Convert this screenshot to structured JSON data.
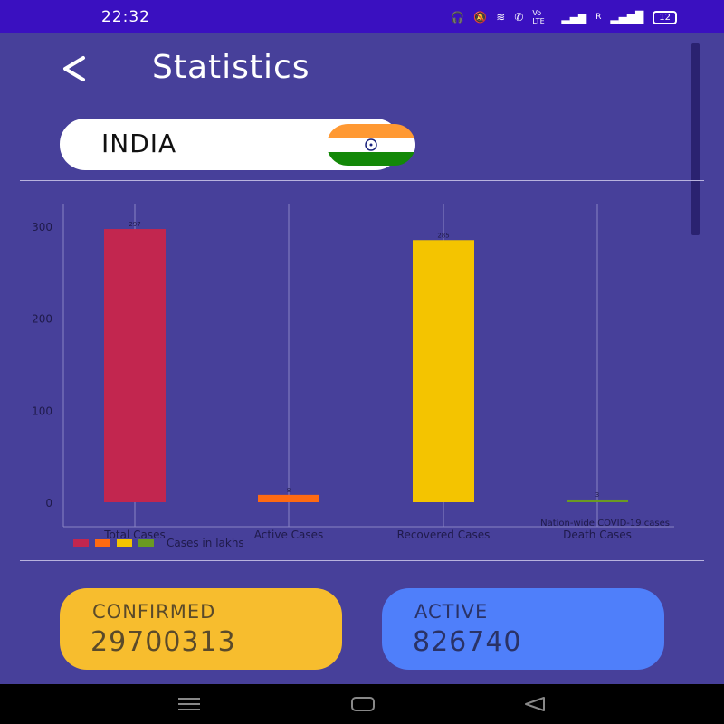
{
  "status_bar": {
    "time": "22:32",
    "network_label": "Vo LTE",
    "signal_label": "R",
    "battery": "12"
  },
  "header": {
    "title": "Statistics"
  },
  "country": {
    "name": "INDIA"
  },
  "chart_data": {
    "type": "bar",
    "categories": [
      "Total Cases",
      "Active Cases",
      "Recovered  Cases",
      "Death  Cases"
    ],
    "values": [
      297,
      8,
      285,
      3
    ],
    "data_labels": [
      "297",
      "8",
      "285",
      "3"
    ],
    "colors": [
      "#c2264f",
      "#ff6a12",
      "#f4c400",
      "#6a9a22"
    ],
    "yticks": [
      "0",
      "100",
      "200",
      "300"
    ],
    "ylim": [
      0,
      320
    ],
    "legend_label": "Cases in lakhs",
    "description": "Nation-wide COVID-19 cases",
    "grid": "vertical"
  },
  "cards": {
    "confirmed": {
      "label": "CONFIRMED",
      "value": "29700313",
      "color": "#f7bd2e"
    },
    "active": {
      "label": "ACTIVE",
      "value": "826740",
      "color": "#4f7ffa"
    }
  },
  "nav": {
    "items": [
      "menu-icon",
      "home-icon",
      "back-icon"
    ]
  }
}
